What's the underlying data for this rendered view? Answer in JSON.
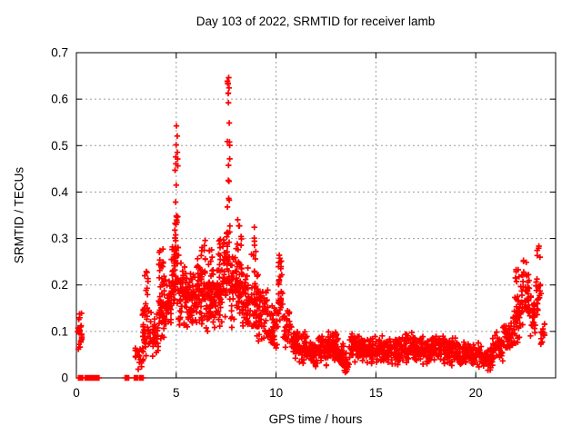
{
  "page": {
    "background": "#ffffff"
  },
  "chart_data": {
    "type": "scatter",
    "title": "Day 103 of 2022, SRMTID for receiver lamb",
    "xlabel": "GPS time / hours",
    "ylabel": "SRMTID / TECUs",
    "xlim": [
      0,
      24
    ],
    "ylim": [
      0,
      0.7
    ],
    "xticks": [
      0,
      5,
      10,
      15,
      20
    ],
    "xtick_labels": [
      "0",
      "5",
      "10",
      "15",
      "20"
    ],
    "yticks": [
      0,
      0.1,
      0.2,
      0.3,
      0.4,
      0.5,
      0.6,
      0.7
    ],
    "ytick_labels": [
      "0",
      "0.1",
      "0.2",
      "0.3",
      "0.4",
      "0.5",
      "0.6",
      "0.7"
    ],
    "grid": true,
    "legend": null,
    "marker": "plus",
    "marker_color": "#ff0000",
    "grid_color": "#9c9c9c",
    "axis_color": "#000000",
    "peaks": [
      {
        "x": 5.0,
        "y": 0.545
      },
      {
        "x": 7.6,
        "y": 0.657
      },
      {
        "x": 10.25,
        "y": 0.26
      },
      {
        "x": 23.1,
        "y": 0.285
      }
    ],
    "data_representation": "cluster-envelopes approximating ~2300 dense '+' points read from the plot",
    "zero_value_runs": [
      [
        0.1,
        0.32,
        10
      ],
      [
        0.36,
        0.55,
        8
      ],
      [
        0.6,
        0.85,
        10
      ],
      [
        0.9,
        1.15,
        11
      ],
      [
        2.4,
        2.65,
        8
      ],
      [
        2.85,
        3.18,
        10
      ],
      [
        3.22,
        3.38,
        5
      ]
    ],
    "point_clusters": [
      [
        0.05,
        0.3,
        0.045,
        0.142,
        22,
        "c"
      ],
      [
        2.95,
        3.35,
        0.01,
        0.09,
        22,
        "c"
      ],
      [
        3.3,
        3.6,
        0.04,
        0.17,
        30,
        "c"
      ],
      [
        3.42,
        3.62,
        0.17,
        0.29,
        8,
        "u"
      ],
      [
        3.6,
        4.1,
        0.04,
        0.16,
        45,
        "c"
      ],
      [
        4.1,
        4.4,
        0.07,
        0.26,
        45,
        "c"
      ],
      [
        4.15,
        4.35,
        0.2,
        0.285,
        8,
        "u"
      ],
      [
        4.4,
        4.75,
        0.1,
        0.23,
        42,
        "c"
      ],
      [
        4.75,
        4.95,
        0.12,
        0.3,
        35,
        "c"
      ],
      [
        4.93,
        5.12,
        0.15,
        0.35,
        30,
        "c"
      ],
      [
        4.94,
        5.1,
        0.3,
        0.455,
        12,
        "u"
      ],
      [
        4.96,
        5.08,
        0.455,
        0.545,
        8,
        "u"
      ],
      [
        5.1,
        5.5,
        0.1,
        0.26,
        45,
        "c"
      ],
      [
        5.5,
        6.0,
        0.09,
        0.25,
        60,
        "c"
      ],
      [
        6.0,
        6.5,
        0.1,
        0.27,
        60,
        "c"
      ],
      [
        6.25,
        6.48,
        0.25,
        0.315,
        7,
        "u"
      ],
      [
        6.5,
        6.95,
        0.09,
        0.25,
        55,
        "c"
      ],
      [
        6.6,
        6.85,
        0.22,
        0.285,
        8,
        "u"
      ],
      [
        6.95,
        7.3,
        0.1,
        0.27,
        45,
        "c"
      ],
      [
        7.05,
        7.25,
        0.24,
        0.3,
        7,
        "u"
      ],
      [
        7.3,
        7.52,
        0.12,
        0.33,
        30,
        "c"
      ],
      [
        7.52,
        7.7,
        0.14,
        0.38,
        30,
        "c"
      ],
      [
        7.54,
        7.68,
        0.38,
        0.555,
        10,
        "u"
      ],
      [
        7.56,
        7.66,
        0.58,
        0.657,
        9,
        "u"
      ],
      [
        7.7,
        8.05,
        0.1,
        0.3,
        40,
        "c"
      ],
      [
        8.05,
        8.3,
        0.12,
        0.28,
        35,
        "c"
      ],
      [
        8.05,
        8.28,
        0.28,
        0.345,
        8,
        "u"
      ],
      [
        8.3,
        8.7,
        0.09,
        0.25,
        48,
        "c"
      ],
      [
        8.7,
        9.1,
        0.08,
        0.26,
        45,
        "c"
      ],
      [
        8.75,
        9.05,
        0.24,
        0.33,
        8,
        "u"
      ],
      [
        9.1,
        9.6,
        0.07,
        0.21,
        48,
        "c"
      ],
      [
        9.6,
        10.05,
        0.05,
        0.17,
        45,
        "c"
      ],
      [
        10.08,
        10.35,
        0.1,
        0.235,
        26,
        "c"
      ],
      [
        10.12,
        10.3,
        0.21,
        0.265,
        8,
        "u"
      ],
      [
        10.35,
        10.7,
        0.05,
        0.15,
        32,
        "c"
      ],
      [
        10.7,
        11.1,
        0.04,
        0.12,
        40,
        "c"
      ],
      [
        11.1,
        11.6,
        0.025,
        0.1,
        52,
        "c"
      ],
      [
        11.6,
        12.1,
        0.02,
        0.085,
        55,
        "c"
      ],
      [
        12.1,
        12.6,
        0.025,
        0.095,
        55,
        "c"
      ],
      [
        12.6,
        13.1,
        0.03,
        0.105,
        58,
        "c"
      ],
      [
        13.1,
        13.4,
        0.02,
        0.075,
        30,
        "c"
      ],
      [
        13.4,
        13.65,
        0.01,
        0.055,
        22,
        "c"
      ],
      [
        13.65,
        14.2,
        0.03,
        0.1,
        55,
        "c"
      ],
      [
        14.2,
        14.9,
        0.025,
        0.09,
        68,
        "c"
      ],
      [
        14.9,
        15.6,
        0.03,
        0.095,
        68,
        "c"
      ],
      [
        15.6,
        16.3,
        0.025,
        0.09,
        66,
        "c"
      ],
      [
        16.3,
        17.0,
        0.03,
        0.1,
        68,
        "c"
      ],
      [
        17.0,
        17.7,
        0.025,
        0.09,
        66,
        "c"
      ],
      [
        17.7,
        18.4,
        0.03,
        0.095,
        68,
        "c"
      ],
      [
        18.4,
        19.1,
        0.025,
        0.09,
        66,
        "c"
      ],
      [
        19.1,
        19.8,
        0.02,
        0.085,
        62,
        "c"
      ],
      [
        19.8,
        20.3,
        0.02,
        0.08,
        48,
        "c"
      ],
      [
        20.3,
        20.85,
        0.015,
        0.065,
        45,
        "c"
      ],
      [
        20.85,
        21.35,
        0.03,
        0.1,
        42,
        "c"
      ],
      [
        21.35,
        21.85,
        0.05,
        0.135,
        40,
        "c"
      ],
      [
        21.85,
        22.25,
        0.07,
        0.19,
        36,
        "c"
      ],
      [
        21.95,
        22.2,
        0.19,
        0.235,
        6,
        "u"
      ],
      [
        22.25,
        22.7,
        0.1,
        0.23,
        40,
        "c"
      ],
      [
        22.35,
        22.65,
        0.22,
        0.26,
        5,
        "u"
      ],
      [
        22.7,
        23.0,
        0.08,
        0.19,
        26,
        "c"
      ],
      [
        23.0,
        23.28,
        0.12,
        0.25,
        20,
        "c"
      ],
      [
        23.05,
        23.22,
        0.25,
        0.285,
        5,
        "u"
      ],
      [
        23.25,
        23.45,
        0.06,
        0.13,
        12,
        "c"
      ]
    ],
    "render_seed": 7
  }
}
